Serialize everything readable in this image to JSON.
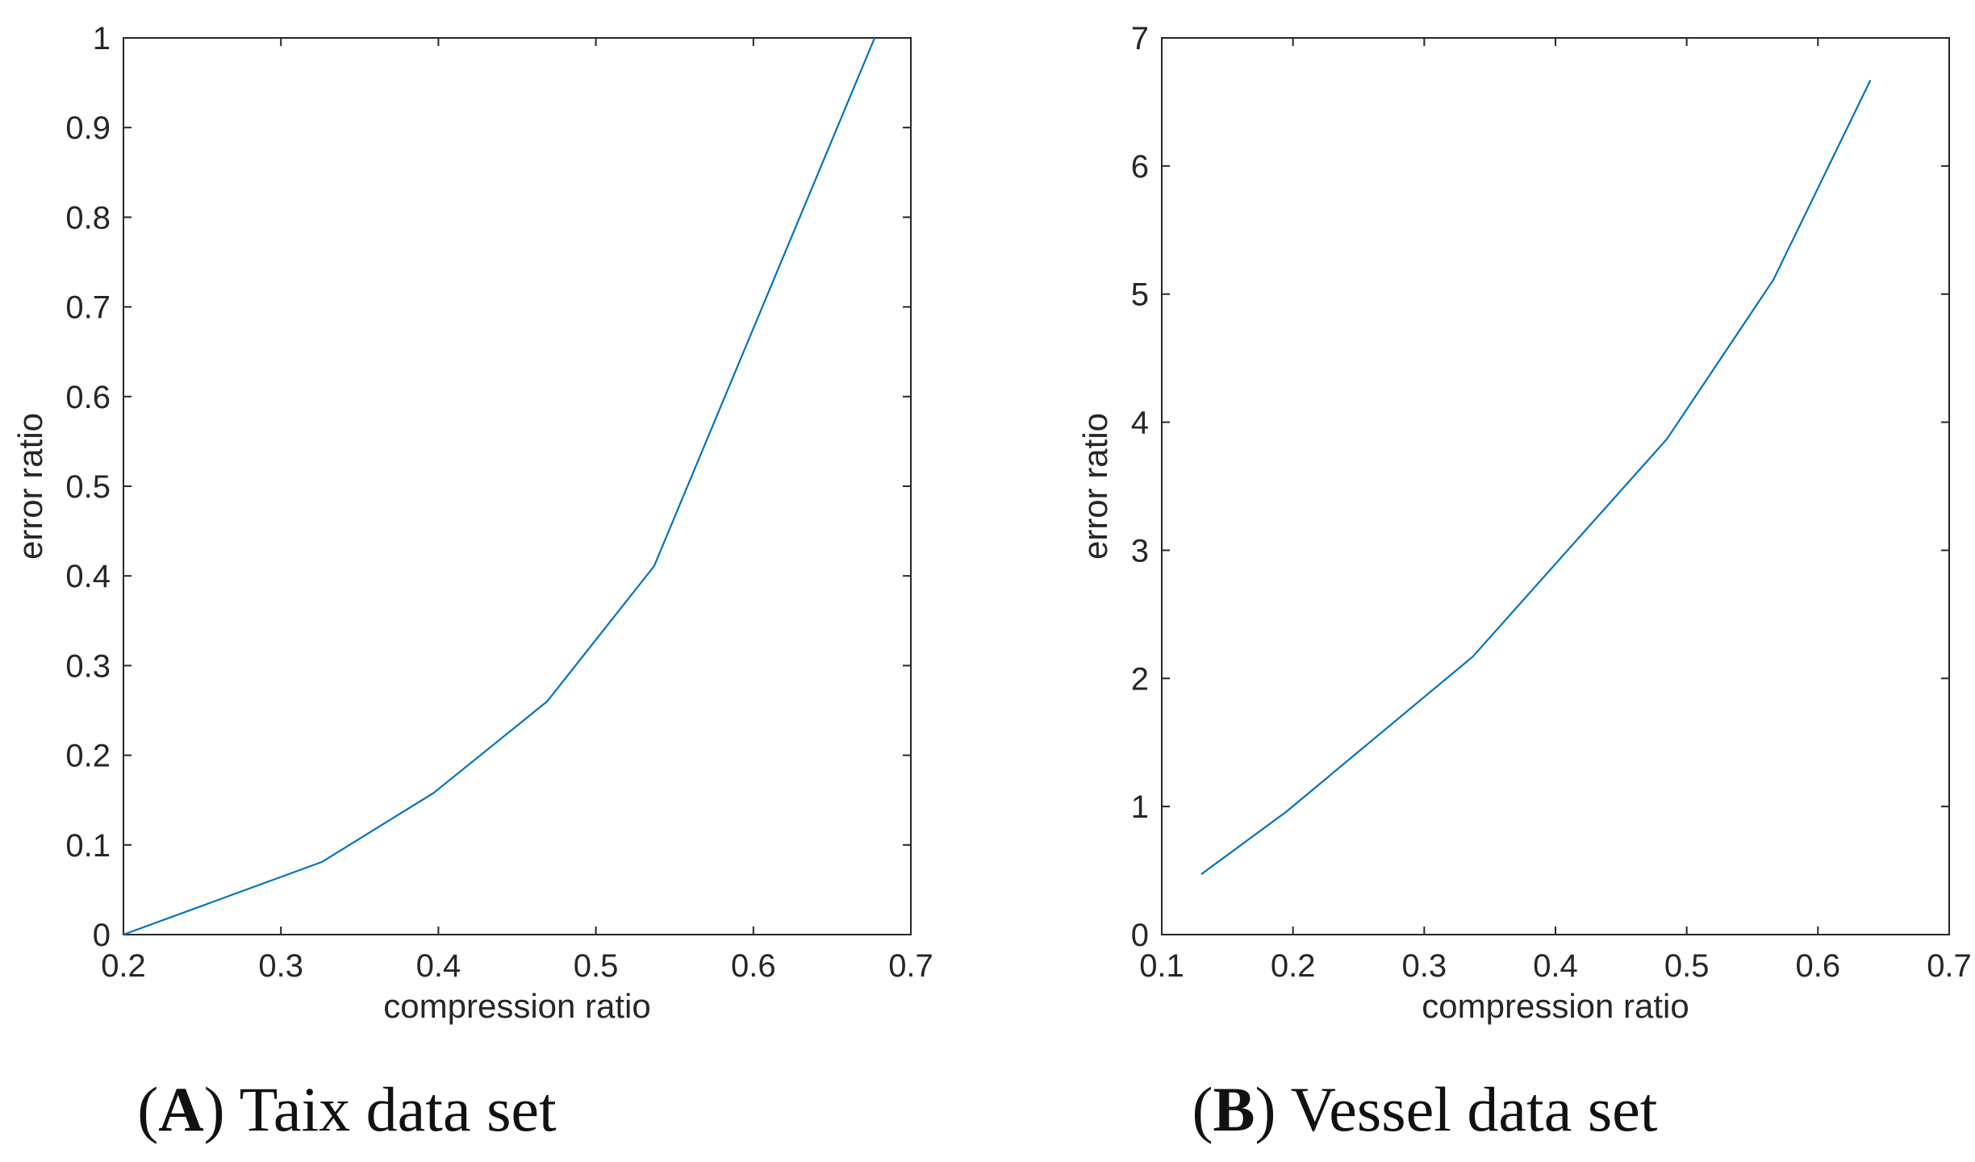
{
  "colors": {
    "line": "#0072BD",
    "axis": "#262626",
    "background": "#ffffff"
  },
  "chart_data": [
    {
      "type": "line",
      "title": "",
      "caption": {
        "letter": "A",
        "text": "Taix data set"
      },
      "xlabel": "compression ratio",
      "ylabel": "error ratio",
      "xlim": [
        0.2,
        0.7
      ],
      "ylim": [
        0,
        1
      ],
      "xticks": [
        0.2,
        0.3,
        0.4,
        0.5,
        0.6,
        0.7
      ],
      "xtick_labels": [
        "0.2",
        "0.3",
        "0.4",
        "0.5",
        "0.6",
        "0.7"
      ],
      "yticks": [
        0,
        0.1,
        0.2,
        0.3,
        0.4,
        0.5,
        0.6,
        0.7,
        0.8,
        0.9,
        1
      ],
      "ytick_labels": [
        "0",
        "0.1",
        "0.2",
        "0.3",
        "0.4",
        "0.5",
        "0.6",
        "0.7",
        "0.8",
        "0.9",
        "1"
      ],
      "grid": false,
      "series": [
        {
          "name": "Taix",
          "x": [
            0.2,
            0.326,
            0.397,
            0.469,
            0.537,
            0.677
          ],
          "y": [
            0.0,
            0.081,
            0.158,
            0.26,
            0.411,
            1.0
          ]
        }
      ]
    },
    {
      "type": "line",
      "title": "",
      "caption": {
        "letter": "B",
        "text": "Vessel data set"
      },
      "xlabel": "compression ratio",
      "ylabel": "error ratio",
      "xlim": [
        0.1,
        0.7
      ],
      "ylim": [
        0,
        7
      ],
      "xticks": [
        0.1,
        0.2,
        0.3,
        0.4,
        0.5,
        0.6,
        0.7
      ],
      "xtick_labels": [
        "0.1",
        "0.2",
        "0.3",
        "0.4",
        "0.5",
        "0.6",
        "0.7"
      ],
      "yticks": [
        0,
        1,
        2,
        3,
        4,
        5,
        6,
        7
      ],
      "ytick_labels": [
        "0",
        "1",
        "2",
        "3",
        "4",
        "5",
        "6",
        "7"
      ],
      "grid": false,
      "series": [
        {
          "name": "Vessel",
          "x": [
            0.13,
            0.195,
            0.337,
            0.485,
            0.566,
            0.64
          ],
          "y": [
            0.47,
            0.96,
            2.17,
            3.87,
            5.11,
            6.67
          ]
        }
      ]
    }
  ]
}
